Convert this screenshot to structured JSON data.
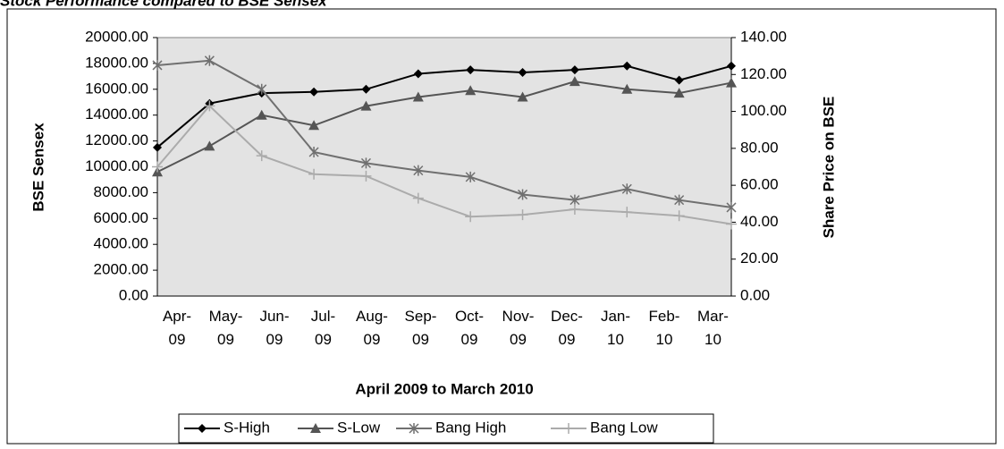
{
  "chart_data": {
    "type": "line",
    "title": "Stock Performance compared to BSE Sensex",
    "x_label": "April 2009 to March 2010",
    "y_label": "BSE Sensex",
    "y2_label": "Share Price on BSE",
    "categories": [
      "Apr-09",
      "May-09",
      "Jun-09",
      "Jul-09",
      "Aug-09",
      "Sep-09",
      "Oct-09",
      "Nov-09",
      "Dec-09",
      "Jan-10",
      "Feb-10",
      "Mar-10"
    ],
    "ylim": [
      0,
      20000
    ],
    "yticks": [
      {
        "value": 0,
        "label": "0.00"
      },
      {
        "value": 2000,
        "label": "2000.00"
      },
      {
        "value": 4000,
        "label": "4000.00"
      },
      {
        "value": 6000,
        "label": "6000.00"
      },
      {
        "value": 8000,
        "label": "8000.00"
      },
      {
        "value": 10000,
        "label": "10000.00"
      },
      {
        "value": 12000,
        "label": "12000.00"
      },
      {
        "value": 14000,
        "label": "14000.00"
      },
      {
        "value": 16000,
        "label": "16000.00"
      },
      {
        "value": 18000,
        "label": "18000.00"
      },
      {
        "value": 20000,
        "label": "20000.00"
      }
    ],
    "y2lim": [
      0,
      140
    ],
    "y2ticks": [
      {
        "value": 0,
        "label": "0.00"
      },
      {
        "value": 20,
        "label": "20.00"
      },
      {
        "value": 40,
        "label": "40.00"
      },
      {
        "value": 60,
        "label": "60.00"
      },
      {
        "value": 80,
        "label": "80.00"
      },
      {
        "value": 100,
        "label": "100.00"
      },
      {
        "value": 120,
        "label": "120.00"
      },
      {
        "value": 140,
        "label": "140.00"
      }
    ],
    "legend": "bottom",
    "series": [
      {
        "name": "S-High",
        "color": "#000000",
        "marker": "diamond",
        "values": [
          11500,
          14900,
          15700,
          15800,
          16000,
          17200,
          17500,
          17300,
          17500,
          17800,
          16700,
          17800
        ]
      },
      {
        "name": "S-Low",
        "color": "#555555",
        "marker": "triangle",
        "values": [
          9600,
          11600,
          14000,
          13200,
          14700,
          15400,
          15900,
          15400,
          16600,
          16000,
          15700,
          16500
        ]
      },
      {
        "name": "Bang High",
        "color": "#707070",
        "marker": "star",
        "axis": "y2",
        "values": [
          125,
          127.5,
          112,
          78,
          72,
          68,
          64.5,
          55,
          52,
          58,
          52,
          48
        ]
      },
      {
        "name": "Bang Low",
        "color": "#ababab",
        "marker": "plus",
        "axis": "y2",
        "values": [
          70,
          103,
          76,
          66,
          65,
          53,
          43,
          44,
          47,
          45.5,
          43.5,
          39
        ]
      }
    ]
  }
}
